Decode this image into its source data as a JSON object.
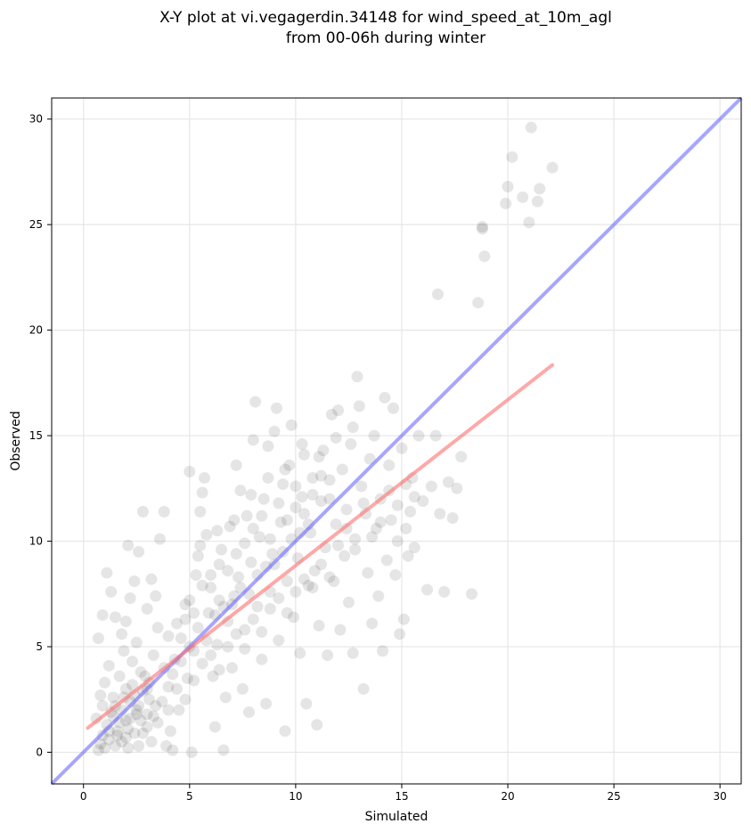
{
  "chart_data": {
    "type": "scatter",
    "title_line1": "X-Y plot at vi.vegagerdin.34148 for wind_speed_at_10m_agl",
    "title_line2": "from 00-06h during winter",
    "xlabel": "Simulated",
    "ylabel": "Observed",
    "xlim": [
      -1.5,
      31
    ],
    "ylim": [
      -1.5,
      31
    ],
    "xticks": [
      0,
      5,
      10,
      15,
      20,
      25,
      30
    ],
    "yticks": [
      0,
      5,
      10,
      15,
      20,
      25,
      30
    ],
    "grid": true,
    "colors": {
      "points": "#000000",
      "identity_line": "#6b6bff",
      "fit_line": "#ff6e6e"
    },
    "identity_line": {
      "x": [
        -1.5,
        31
      ],
      "y": [
        -1.5,
        31
      ]
    },
    "fit_line": {
      "x": [
        0.2,
        22.1
      ],
      "y": [
        1.15,
        18.35
      ]
    },
    "series": [
      {
        "points": [
          [
            0.7,
            0.1
          ],
          [
            0.8,
            0.4
          ],
          [
            0.9,
            0.8
          ],
          [
            1.0,
            0.2
          ],
          [
            1.1,
            1.3
          ],
          [
            1.2,
            0.6
          ],
          [
            0.6,
            1.6
          ],
          [
            0.9,
            2.2
          ],
          [
            1.3,
            1.9
          ],
          [
            1.5,
            0.3
          ],
          [
            1.6,
            1.0
          ],
          [
            1.8,
            0.5
          ],
          [
            2.0,
            1.5
          ],
          [
            2.1,
            0.2
          ],
          [
            2.2,
            2.4
          ],
          [
            2.4,
            0.9
          ],
          [
            2.5,
            1.8
          ],
          [
            2.6,
            0.3
          ],
          [
            2.8,
            2.9
          ],
          [
            3.0,
            1.2
          ],
          [
            0.8,
            2.7
          ],
          [
            1.0,
            3.3
          ],
          [
            1.2,
            4.1
          ],
          [
            1.4,
            2.6
          ],
          [
            1.7,
            3.6
          ],
          [
            1.9,
            4.8
          ],
          [
            2.0,
            3.0
          ],
          [
            2.3,
            4.3
          ],
          [
            2.5,
            5.2
          ],
          [
            2.7,
            3.8
          ],
          [
            0.7,
            5.4
          ],
          [
            0.9,
            6.5
          ],
          [
            1.1,
            8.5
          ],
          [
            1.3,
            7.6
          ],
          [
            1.5,
            6.4
          ],
          [
            1.8,
            5.6
          ],
          [
            2.0,
            6.2
          ],
          [
            2.2,
            7.3
          ],
          [
            2.4,
            8.1
          ],
          [
            2.6,
            9.5
          ],
          [
            2.1,
            9.8
          ],
          [
            2.8,
            11.4
          ],
          [
            3.0,
            6.8
          ],
          [
            3.2,
            8.2
          ],
          [
            3.4,
            7.4
          ],
          [
            3.6,
            10.1
          ],
          [
            3.8,
            11.4
          ],
          [
            3.5,
            5.9
          ],
          [
            3.3,
            4.6
          ],
          [
            3.1,
            3.3
          ],
          [
            3.2,
            0.5
          ],
          [
            3.5,
            1.4
          ],
          [
            3.7,
            2.4
          ],
          [
            3.9,
            0.3
          ],
          [
            4.0,
            3.1
          ],
          [
            4.1,
            1.0
          ],
          [
            4.2,
            0.1
          ],
          [
            4.3,
            4.4
          ],
          [
            4.5,
            2.0
          ],
          [
            4.6,
            5.4
          ],
          [
            4.8,
            6.3
          ],
          [
            4.9,
            3.5
          ],
          [
            5.0,
            7.2
          ],
          [
            5.1,
            0.0
          ],
          [
            5.2,
            4.8
          ],
          [
            5.3,
            8.4
          ],
          [
            5.4,
            9.3
          ],
          [
            5.5,
            11.4
          ],
          [
            5.6,
            12.3
          ],
          [
            5.7,
            13.0
          ],
          [
            5.0,
            13.3
          ],
          [
            5.8,
            10.3
          ],
          [
            5.9,
            6.6
          ],
          [
            6.0,
            7.8
          ],
          [
            6.1,
            3.6
          ],
          [
            6.2,
            1.2
          ],
          [
            6.3,
            5.1
          ],
          [
            6.4,
            8.9
          ],
          [
            6.5,
            9.6
          ],
          [
            6.6,
            0.1
          ],
          [
            6.7,
            2.6
          ],
          [
            6.8,
            6.2
          ],
          [
            6.9,
            10.7
          ],
          [
            7.0,
            4.0
          ],
          [
            7.1,
            7.4
          ],
          [
            7.2,
            13.6
          ],
          [
            7.3,
            8.3
          ],
          [
            7.4,
            12.4
          ],
          [
            7.5,
            3.0
          ],
          [
            7.6,
            5.8
          ],
          [
            7.7,
            11.2
          ],
          [
            7.8,
            1.9
          ],
          [
            7.9,
            9.0
          ],
          [
            8.0,
            14.8
          ],
          [
            8.1,
            16.6
          ],
          [
            8.2,
            6.9
          ],
          [
            8.3,
            10.2
          ],
          [
            8.4,
            4.4
          ],
          [
            8.5,
            12.0
          ],
          [
            8.6,
            2.3
          ],
          [
            8.7,
            14.5
          ],
          [
            8.8,
            7.6
          ],
          [
            8.9,
            9.4
          ],
          [
            9.0,
            15.2
          ],
          [
            9.1,
            16.3
          ],
          [
            9.2,
            5.3
          ],
          [
            9.3,
            10.9
          ],
          [
            9.4,
            12.7
          ],
          [
            9.5,
            1.0
          ],
          [
            9.6,
            8.1
          ],
          [
            9.7,
            13.6
          ],
          [
            9.8,
            15.5
          ],
          [
            9.9,
            6.4
          ],
          [
            10.0,
            11.6
          ],
          [
            10.1,
            9.2
          ],
          [
            10.2,
            4.7
          ],
          [
            10.3,
            12.1
          ],
          [
            10.4,
            14.1
          ],
          [
            10.5,
            2.3
          ],
          [
            10.6,
            7.9
          ],
          [
            10.7,
            10.4
          ],
          [
            10.8,
            13.0
          ],
          [
            10.9,
            8.6
          ],
          [
            11.0,
            1.3
          ],
          [
            11.1,
            6.0
          ],
          [
            11.2,
            11.9
          ],
          [
            11.3,
            14.3
          ],
          [
            11.4,
            9.7
          ],
          [
            11.5,
            4.6
          ],
          [
            11.6,
            12.9
          ],
          [
            11.7,
            16.0
          ],
          [
            11.8,
            8.1
          ],
          [
            11.9,
            10.8
          ],
          [
            12.0,
            16.2
          ],
          [
            12.1,
            5.8
          ],
          [
            12.2,
            13.4
          ],
          [
            12.3,
            9.3
          ],
          [
            12.4,
            11.5
          ],
          [
            12.5,
            7.1
          ],
          [
            12.6,
            14.6
          ],
          [
            12.7,
            4.7
          ],
          [
            12.8,
            10.1
          ],
          [
            12.9,
            17.8
          ],
          [
            13.0,
            16.4
          ],
          [
            13.1,
            12.6
          ],
          [
            13.2,
            3.0
          ],
          [
            13.3,
            11.3
          ],
          [
            13.4,
            8.5
          ],
          [
            13.5,
            13.9
          ],
          [
            13.6,
            6.1
          ],
          [
            13.7,
            15.0
          ],
          [
            13.8,
            10.6
          ],
          [
            13.9,
            7.4
          ],
          [
            14.0,
            12.0
          ],
          [
            14.1,
            4.8
          ],
          [
            14.2,
            16.8
          ],
          [
            14.3,
            9.1
          ],
          [
            14.4,
            13.6
          ],
          [
            14.5,
            11.0
          ],
          [
            14.6,
            16.3
          ],
          [
            14.7,
            8.4
          ],
          [
            14.8,
            10.0
          ],
          [
            14.9,
            5.6
          ],
          [
            15.0,
            14.4
          ],
          [
            15.1,
            6.3
          ],
          [
            15.2,
            12.7
          ],
          [
            15.3,
            9.3
          ],
          [
            15.4,
            11.4
          ],
          [
            15.5,
            13.0
          ],
          [
            15.6,
            9.7
          ],
          [
            15.8,
            15.0
          ],
          [
            16.0,
            11.9
          ],
          [
            16.2,
            7.7
          ],
          [
            16.4,
            12.6
          ],
          [
            16.6,
            15.0
          ],
          [
            16.8,
            11.3
          ],
          [
            17.0,
            7.6
          ],
          [
            17.2,
            12.8
          ],
          [
            17.4,
            11.1
          ],
          [
            17.6,
            12.5
          ],
          [
            17.8,
            14.0
          ],
          [
            18.3,
            7.5
          ],
          [
            16.7,
            21.7
          ],
          [
            18.6,
            21.3
          ],
          [
            18.8,
            24.9
          ],
          [
            18.9,
            23.5
          ],
          [
            19.9,
            26.0
          ],
          [
            20.0,
            26.8
          ],
          [
            20.2,
            28.2
          ],
          [
            20.7,
            26.3
          ],
          [
            21.0,
            25.1
          ],
          [
            21.1,
            29.6
          ],
          [
            21.4,
            26.1
          ],
          [
            21.5,
            26.7
          ],
          [
            22.1,
            27.7
          ],
          [
            18.8,
            24.8
          ],
          [
            3.0,
            3.0
          ],
          [
            3.4,
            2.2
          ],
          [
            3.8,
            4.0
          ],
          [
            4.2,
            3.7
          ],
          [
            4.6,
            4.3
          ],
          [
            5.0,
            5.0
          ],
          [
            5.4,
            5.9
          ],
          [
            5.8,
            5.3
          ],
          [
            6.2,
            6.5
          ],
          [
            6.6,
            6.9
          ],
          [
            7.0,
            7.0
          ],
          [
            7.4,
            7.8
          ],
          [
            7.8,
            7.5
          ],
          [
            8.2,
            8.4
          ],
          [
            8.6,
            8.8
          ],
          [
            9.0,
            8.9
          ],
          [
            9.4,
            9.5
          ],
          [
            9.8,
            10.1
          ],
          [
            10.2,
            10.4
          ],
          [
            10.6,
            10.8
          ],
          [
            4.0,
            5.5
          ],
          [
            4.4,
            6.1
          ],
          [
            4.8,
            7.0
          ],
          [
            5.2,
            6.6
          ],
          [
            5.6,
            7.9
          ],
          [
            6.0,
            8.4
          ],
          [
            6.4,
            7.2
          ],
          [
            6.8,
            8.6
          ],
          [
            7.2,
            9.4
          ],
          [
            7.6,
            9.9
          ],
          [
            8.0,
            10.6
          ],
          [
            8.4,
            11.2
          ],
          [
            8.8,
            10.1
          ],
          [
            9.2,
            11.8
          ],
          [
            9.6,
            11.0
          ],
          [
            10.0,
            12.6
          ],
          [
            10.4,
            11.3
          ],
          [
            10.8,
            12.2
          ],
          [
            11.2,
            13.1
          ],
          [
            11.6,
            12.0
          ],
          [
            4.0,
            2.0
          ],
          [
            4.4,
            3.0
          ],
          [
            4.8,
            2.5
          ],
          [
            5.2,
            3.4
          ],
          [
            5.6,
            4.2
          ],
          [
            6.0,
            4.6
          ],
          [
            6.4,
            3.9
          ],
          [
            6.8,
            5.0
          ],
          [
            7.2,
            5.6
          ],
          [
            7.6,
            4.9
          ],
          [
            8.0,
            6.3
          ],
          [
            8.4,
            5.7
          ],
          [
            8.8,
            6.8
          ],
          [
            9.2,
            7.3
          ],
          [
            9.6,
            6.6
          ],
          [
            10.0,
            7.6
          ],
          [
            10.4,
            8.2
          ],
          [
            10.8,
            7.8
          ],
          [
            11.2,
            8.9
          ],
          [
            11.6,
            8.3
          ],
          [
            12.0,
            9.8
          ],
          [
            12.4,
            10.6
          ],
          [
            12.8,
            9.6
          ],
          [
            13.2,
            11.8
          ],
          [
            13.6,
            10.2
          ],
          [
            14.0,
            10.9
          ],
          [
            14.4,
            12.4
          ],
          [
            14.8,
            11.7
          ],
          [
            15.2,
            10.6
          ],
          [
            15.6,
            12.1
          ],
          [
            1.5,
            2.2
          ],
          [
            1.7,
            1.4
          ],
          [
            1.9,
            2.6
          ],
          [
            2.1,
            1.1
          ],
          [
            2.3,
            3.2
          ],
          [
            2.5,
            2.0
          ],
          [
            2.7,
            1.5
          ],
          [
            2.9,
            3.6
          ],
          [
            3.1,
            2.5
          ],
          [
            3.3,
            1.7
          ],
          [
            1.2,
            1.0
          ],
          [
            1.4,
            1.7
          ],
          [
            1.6,
            0.8
          ],
          [
            1.8,
            2.0
          ],
          [
            2.0,
            0.7
          ],
          [
            2.2,
            1.6
          ],
          [
            2.4,
            2.7
          ],
          [
            2.6,
            2.2
          ],
          [
            2.8,
            0.9
          ],
          [
            3.0,
            1.8
          ],
          [
            5.5,
            9.8
          ],
          [
            6.3,
            10.5
          ],
          [
            7.1,
            11.0
          ],
          [
            7.9,
            12.2
          ],
          [
            8.7,
            13.0
          ],
          [
            9.5,
            13.4
          ],
          [
            10.3,
            14.6
          ],
          [
            11.1,
            14.0
          ],
          [
            11.9,
            14.9
          ],
          [
            12.7,
            15.4
          ]
        ]
      }
    ]
  }
}
